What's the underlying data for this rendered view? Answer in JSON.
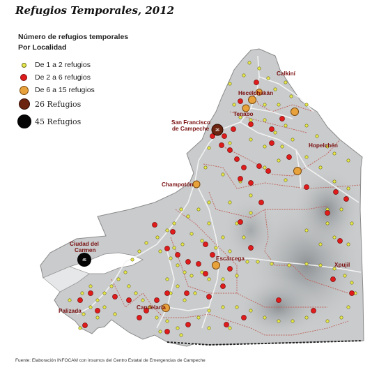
{
  "title": "Refugios Temporales, 2012",
  "legend": {
    "heading_line1": "Número de refugios temporales",
    "heading_line2": "Por Localidad",
    "items": [
      {
        "label": "De 1 a 2 refugios",
        "color": "#e8e84a",
        "stroke": "#6b6b1a"
      },
      {
        "label": "De 2 a 6 refugios",
        "color": "#e01b1b",
        "stroke": "#7a0a0a"
      },
      {
        "label": "De 6 a 15 refugios",
        "color": "#e8a23c",
        "stroke": "#7a4a10"
      },
      {
        "label": "26 Refugios",
        "color": "#6b2410",
        "stroke": "#2a0a00"
      },
      {
        "label": "45 Refugios",
        "color": "#050505",
        "stroke": "#000000"
      }
    ]
  },
  "places": [
    {
      "name": "Calkiní"
    },
    {
      "name": "Hecelchakán"
    },
    {
      "name": "Tenabo"
    },
    {
      "name": "San Francisco"
    },
    {
      "name": "de Campeche"
    },
    {
      "name": "Hopelchén"
    },
    {
      "name": "Champotón"
    },
    {
      "name": "Ciudad del"
    },
    {
      "name": "Carmen"
    },
    {
      "name": "Escárcega"
    },
    {
      "name": "Xpujil"
    },
    {
      "name": "Candelaria"
    },
    {
      "name": "Palizada"
    }
  ],
  "count_labels": {
    "campeche": "26",
    "carmen": "45"
  },
  "colors": {
    "land": "#c9cbcc",
    "relief": "#9ea2a5",
    "water": "#ffffff",
    "road": "#f2f2f2",
    "boundary": "#c0605a",
    "label": "#7a1010"
  },
  "footer": "Fuente: Elaboración INFOCAM con insumos del Centro Estatal de Emergencias de Campeche"
}
